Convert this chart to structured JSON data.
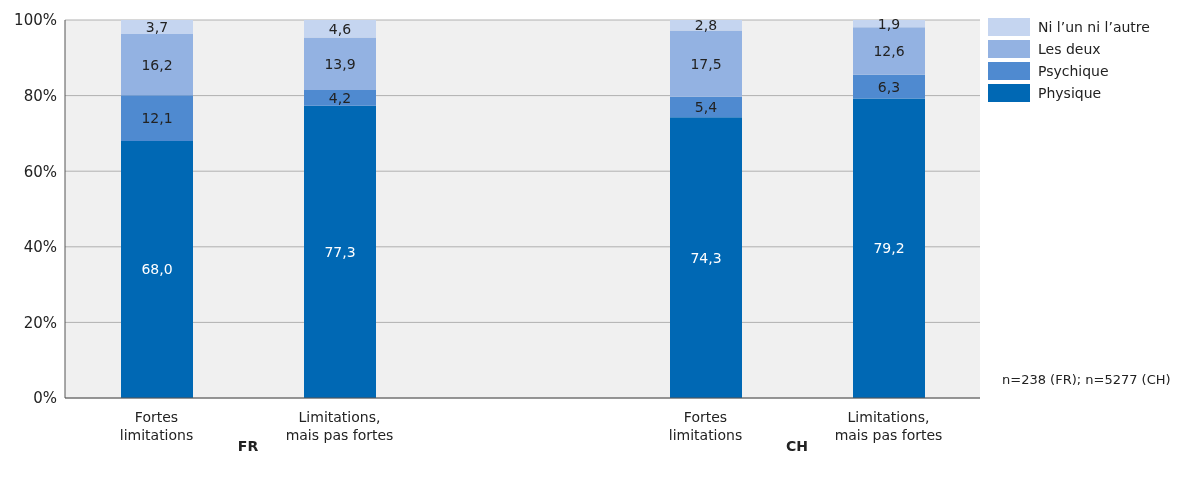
{
  "chart_data": {
    "type": "bar",
    "stacked": true,
    "categories": [
      "Fortes limitations",
      "Limitations, mais pas fortes",
      null,
      "Fortes limitations",
      "Limitations, mais pas fortes"
    ],
    "series": [
      {
        "name": "Physique",
        "color": "#0068b4",
        "values": [
          68.0,
          77.3,
          null,
          74.3,
          79.2
        ],
        "value_labels": [
          "68,0",
          "77,3",
          null,
          "74,3",
          "79,2"
        ]
      },
      {
        "name": "Psychique",
        "color": "#4f8ad0",
        "values": [
          12.1,
          4.2,
          null,
          5.4,
          6.3
        ],
        "value_labels": [
          "12,1",
          "4,2",
          null,
          "5,4",
          "6,3"
        ]
      },
      {
        "name": "Les deux",
        "color": "#93b2e2",
        "values": [
          16.2,
          13.9,
          null,
          17.5,
          12.6
        ],
        "value_labels": [
          "16,2",
          "13,9",
          null,
          "17,5",
          "12,6"
        ]
      },
      {
        "name": "Ni l’un ni l’autre",
        "color": "#c5d5f0",
        "values": [
          3.7,
          4.6,
          null,
          2.8,
          1.9
        ],
        "value_labels": [
          "3,7",
          "4,6",
          null,
          "2,8",
          "1,9"
        ]
      }
    ],
    "ylim": [
      0,
      100
    ],
    "yticks": [
      {
        "value": 0,
        "label": "0%"
      },
      {
        "value": 20,
        "label": "20%"
      },
      {
        "value": 40,
        "label": "40%"
      },
      {
        "value": 60,
        "label": "60%"
      },
      {
        "value": 80,
        "label": "80%"
      },
      {
        "value": 100,
        "label": "100%"
      }
    ],
    "grid": "y",
    "legend": "top right",
    "annotations": [
      "FR",
      "CH",
      "n=238 (FR); n=5277 (CH)"
    ]
  }
}
